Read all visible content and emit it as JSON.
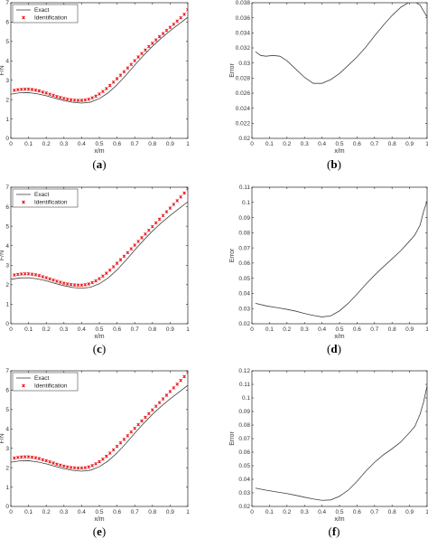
{
  "chart_data": [
    {
      "id": "a",
      "type": "line_scatter",
      "caption": "a",
      "xlabel": "x/m",
      "ylabel": "F/N",
      "xlim": [
        0,
        1
      ],
      "ylim": [
        0,
        7
      ],
      "xticks": [
        "0",
        "0.1",
        "0.2",
        "0.3",
        "0.4",
        "0.5",
        "0.6",
        "0.7",
        "0.8",
        "0.9",
        "1"
      ],
      "yticks": [
        "0",
        "1",
        "2",
        "3",
        "4",
        "5",
        "6",
        "7"
      ],
      "legend": {
        "placement": "top-left",
        "entries": [
          "Exact",
          "Identification"
        ]
      },
      "series": [
        {
          "name": "Exact",
          "style": "line",
          "color": "#404040",
          "x": [
            0,
            0.05,
            0.1,
            0.15,
            0.2,
            0.25,
            0.3,
            0.35,
            0.4,
            0.45,
            0.5,
            0.55,
            0.6,
            0.65,
            0.7,
            0.75,
            0.8,
            0.85,
            0.9,
            0.95,
            1.0
          ],
          "y": [
            2.28,
            2.35,
            2.36,
            2.3,
            2.2,
            2.07,
            1.95,
            1.86,
            1.82,
            1.87,
            2.05,
            2.35,
            2.76,
            3.25,
            3.78,
            4.28,
            4.75,
            5.17,
            5.55,
            5.9,
            6.25
          ]
        },
        {
          "name": "Identification",
          "style": "markers",
          "color": "#e8191c",
          "x": [
            0.02,
            0.04,
            0.06,
            0.08,
            0.1,
            0.12,
            0.14,
            0.16,
            0.18,
            0.2,
            0.22,
            0.24,
            0.26,
            0.28,
            0.3,
            0.32,
            0.34,
            0.36,
            0.38,
            0.4,
            0.42,
            0.44,
            0.46,
            0.48,
            0.5,
            0.52,
            0.54,
            0.56,
            0.58,
            0.6,
            0.62,
            0.64,
            0.66,
            0.68,
            0.7,
            0.72,
            0.74,
            0.76,
            0.78,
            0.8,
            0.82,
            0.84,
            0.86,
            0.88,
            0.9,
            0.92,
            0.94,
            0.96,
            0.98,
            1.0
          ],
          "y": [
            2.48,
            2.51,
            2.53,
            2.54,
            2.54,
            2.52,
            2.49,
            2.45,
            2.39,
            2.34,
            2.28,
            2.22,
            2.16,
            2.11,
            2.06,
            2.02,
            1.99,
            1.97,
            1.96,
            1.96,
            1.98,
            2.02,
            2.09,
            2.18,
            2.29,
            2.42,
            2.57,
            2.73,
            2.9,
            3.08,
            3.26,
            3.44,
            3.63,
            3.82,
            4.01,
            4.2,
            4.38,
            4.56,
            4.74,
            4.91,
            5.08,
            5.25,
            5.41,
            5.57,
            5.73,
            5.89,
            6.05,
            6.22,
            6.4,
            6.64
          ]
        }
      ]
    },
    {
      "id": "b",
      "type": "line",
      "caption": "b",
      "xlabel": "x/m",
      "ylabel": "Error",
      "xlim": [
        0,
        1
      ],
      "ylim": [
        0.02,
        0.038
      ],
      "xticks": [
        "0",
        "0.1",
        "0.2",
        "0.3",
        "0.4",
        "0.5",
        "0.6",
        "0.7",
        "0.8",
        "0.9",
        "1"
      ],
      "yticks": [
        "0.02",
        "0.022",
        "0.024",
        "0.026",
        "0.028",
        "0.03",
        "0.032",
        "0.034",
        "0.036",
        "0.038"
      ],
      "series": [
        {
          "style": "line",
          "color": "#404040",
          "x": [
            0.02,
            0.05,
            0.08,
            0.12,
            0.16,
            0.2,
            0.25,
            0.3,
            0.35,
            0.4,
            0.45,
            0.5,
            0.55,
            0.6,
            0.65,
            0.7,
            0.75,
            0.8,
            0.85,
            0.9,
            0.93,
            0.96,
            0.98,
            1.0
          ],
          "y": [
            0.0315,
            0.031,
            0.0309,
            0.031,
            0.0309,
            0.0303,
            0.0292,
            0.0281,
            0.0273,
            0.0273,
            0.0278,
            0.0286,
            0.0297,
            0.0308,
            0.0321,
            0.0336,
            0.035,
            0.0363,
            0.0374,
            0.0381,
            0.0381,
            0.0377,
            0.0369,
            0.0361
          ]
        }
      ]
    },
    {
      "id": "c",
      "type": "line_scatter",
      "caption": "c",
      "xlabel": "x/m",
      "ylabel": "F/N",
      "xlim": [
        0,
        1
      ],
      "ylim": [
        0,
        7
      ],
      "xticks": [
        "0",
        "0.1",
        "0.2",
        "0.3",
        "0.4",
        "0.5",
        "0.6",
        "0.7",
        "0.8",
        "0.9",
        "1"
      ],
      "yticks": [
        "0",
        "1",
        "2",
        "3",
        "4",
        "5",
        "6",
        "7"
      ],
      "legend": {
        "placement": "top-left",
        "entries": [
          "Exact",
          "Identification"
        ]
      },
      "series": [
        {
          "name": "Exact",
          "style": "line",
          "color": "#404040",
          "x": [
            0,
            0.05,
            0.1,
            0.15,
            0.2,
            0.25,
            0.3,
            0.35,
            0.4,
            0.45,
            0.5,
            0.55,
            0.6,
            0.65,
            0.7,
            0.75,
            0.8,
            0.85,
            0.9,
            0.95,
            1.0
          ],
          "y": [
            2.28,
            2.35,
            2.36,
            2.3,
            2.2,
            2.07,
            1.95,
            1.86,
            1.82,
            1.87,
            2.05,
            2.35,
            2.76,
            3.25,
            3.78,
            4.28,
            4.75,
            5.17,
            5.55,
            5.9,
            6.25
          ]
        },
        {
          "name": "Identification",
          "style": "markers",
          "color": "#e8191c",
          "x": [
            0.02,
            0.04,
            0.06,
            0.08,
            0.1,
            0.12,
            0.14,
            0.16,
            0.18,
            0.2,
            0.22,
            0.24,
            0.26,
            0.28,
            0.3,
            0.32,
            0.34,
            0.36,
            0.38,
            0.4,
            0.42,
            0.44,
            0.46,
            0.48,
            0.5,
            0.52,
            0.54,
            0.56,
            0.58,
            0.6,
            0.62,
            0.64,
            0.66,
            0.68,
            0.7,
            0.72,
            0.74,
            0.76,
            0.78,
            0.8,
            0.82,
            0.84,
            0.86,
            0.88,
            0.9,
            0.92,
            0.94,
            0.96,
            0.98,
            1.0
          ],
          "y": [
            2.5,
            2.53,
            2.55,
            2.56,
            2.56,
            2.54,
            2.51,
            2.47,
            2.41,
            2.36,
            2.3,
            2.24,
            2.18,
            2.13,
            2.08,
            2.04,
            2.01,
            1.99,
            1.98,
            1.98,
            2.0,
            2.04,
            2.11,
            2.2,
            2.31,
            2.44,
            2.59,
            2.75,
            2.92,
            3.1,
            3.28,
            3.46,
            3.65,
            3.84,
            4.03,
            4.22,
            4.41,
            4.6,
            4.79,
            4.98,
            5.17,
            5.36,
            5.55,
            5.74,
            5.93,
            6.12,
            6.31,
            6.5,
            6.7,
            6.92
          ]
        }
      ]
    },
    {
      "id": "d",
      "type": "line",
      "caption": "d",
      "xlabel": "x/m",
      "ylabel": "Error",
      "xlim": [
        0,
        1
      ],
      "ylim": [
        0.02,
        0.11
      ],
      "xticks": [
        "0",
        "0.1",
        "0.2",
        "0.3",
        "0.4",
        "0.5",
        "0.6",
        "0.7",
        "0.8",
        "0.9",
        "1"
      ],
      "yticks": [
        "0.02",
        "0.03",
        "0.04",
        "0.05",
        "0.06",
        "0.07",
        "0.08",
        "0.09",
        "0.1",
        "0.11"
      ],
      "series": [
        {
          "style": "line",
          "color": "#404040",
          "x": [
            0.02,
            0.08,
            0.15,
            0.2,
            0.25,
            0.3,
            0.35,
            0.4,
            0.45,
            0.5,
            0.55,
            0.6,
            0.65,
            0.7,
            0.75,
            0.8,
            0.85,
            0.9,
            0.93,
            0.96,
            0.98,
            1.0
          ],
          "y": [
            0.0335,
            0.0318,
            0.0305,
            0.0295,
            0.0283,
            0.0268,
            0.0255,
            0.0245,
            0.0252,
            0.0285,
            0.0335,
            0.0395,
            0.046,
            0.052,
            0.0575,
            0.0628,
            0.0682,
            0.0745,
            0.0785,
            0.085,
            0.094,
            0.101
          ]
        }
      ]
    },
    {
      "id": "e",
      "type": "line_scatter",
      "caption": "e",
      "xlabel": "x/m",
      "ylabel": "F/N",
      "xlim": [
        0,
        1
      ],
      "ylim": [
        0,
        7
      ],
      "xticks": [
        "0",
        "0.1",
        "0.2",
        "0.3",
        "0.4",
        "0.5",
        "0.6",
        "0.7",
        "0.8",
        "0.9",
        "1"
      ],
      "yticks": [
        "0",
        "1",
        "2",
        "3",
        "4",
        "5",
        "6",
        "7"
      ],
      "legend": {
        "placement": "top-left",
        "entries": [
          "Exact",
          "Identification"
        ]
      },
      "series": [
        {
          "name": "Exact",
          "style": "line",
          "color": "#404040",
          "x": [
            0,
            0.05,
            0.1,
            0.15,
            0.2,
            0.25,
            0.3,
            0.35,
            0.4,
            0.45,
            0.5,
            0.55,
            0.6,
            0.65,
            0.7,
            0.75,
            0.8,
            0.85,
            0.9,
            0.95,
            1.0
          ],
          "y": [
            2.28,
            2.35,
            2.36,
            2.3,
            2.2,
            2.07,
            1.95,
            1.86,
            1.82,
            1.87,
            2.05,
            2.35,
            2.76,
            3.25,
            3.78,
            4.28,
            4.75,
            5.17,
            5.55,
            5.9,
            6.25
          ]
        },
        {
          "name": "Identification",
          "style": "markers",
          "color": "#e8191c",
          "x": [
            0.02,
            0.04,
            0.06,
            0.08,
            0.1,
            0.12,
            0.14,
            0.16,
            0.18,
            0.2,
            0.22,
            0.24,
            0.26,
            0.28,
            0.3,
            0.32,
            0.34,
            0.36,
            0.38,
            0.4,
            0.42,
            0.44,
            0.46,
            0.48,
            0.5,
            0.52,
            0.54,
            0.56,
            0.58,
            0.6,
            0.62,
            0.64,
            0.66,
            0.68,
            0.7,
            0.72,
            0.74,
            0.76,
            0.78,
            0.8,
            0.82,
            0.84,
            0.86,
            0.88,
            0.9,
            0.92,
            0.94,
            0.96,
            0.98,
            1.0
          ],
          "y": [
            2.5,
            2.53,
            2.55,
            2.56,
            2.56,
            2.54,
            2.51,
            2.47,
            2.41,
            2.36,
            2.3,
            2.24,
            2.18,
            2.13,
            2.08,
            2.04,
            2.01,
            1.99,
            1.98,
            1.98,
            2.0,
            2.04,
            2.11,
            2.2,
            2.31,
            2.44,
            2.59,
            2.75,
            2.92,
            3.1,
            3.28,
            3.46,
            3.65,
            3.84,
            4.03,
            4.22,
            4.41,
            4.6,
            4.79,
            4.98,
            5.17,
            5.36,
            5.55,
            5.74,
            5.93,
            6.12,
            6.31,
            6.5,
            6.7,
            6.92
          ]
        }
      ]
    },
    {
      "id": "f",
      "type": "line",
      "caption": "f",
      "xlabel": "x/m",
      "ylabel": "Error",
      "xlim": [
        0,
        1
      ],
      "ylim": [
        0.02,
        0.12
      ],
      "xticks": [
        "0",
        "0.1",
        "0.2",
        "0.3",
        "0.4",
        "0.5",
        "0.6",
        "0.7",
        "0.8",
        "0.9",
        "1"
      ],
      "yticks": [
        "0.02",
        "0.03",
        "0.04",
        "0.05",
        "0.06",
        "0.07",
        "0.08",
        "0.09",
        "0.1",
        "0.11",
        "0.12"
      ],
      "series": [
        {
          "style": "line",
          "color": "#404040",
          "x": [
            0.02,
            0.08,
            0.15,
            0.2,
            0.25,
            0.3,
            0.35,
            0.4,
            0.45,
            0.5,
            0.55,
            0.6,
            0.65,
            0.7,
            0.75,
            0.8,
            0.85,
            0.9,
            0.93,
            0.96,
            0.98,
            1.0
          ],
          "y": [
            0.0335,
            0.032,
            0.0305,
            0.0295,
            0.0282,
            0.0268,
            0.0255,
            0.0245,
            0.0248,
            0.0275,
            0.032,
            0.0385,
            0.046,
            0.0525,
            0.058,
            0.0625,
            0.0675,
            0.0745,
            0.079,
            0.088,
            0.097,
            0.109
          ]
        }
      ]
    }
  ]
}
